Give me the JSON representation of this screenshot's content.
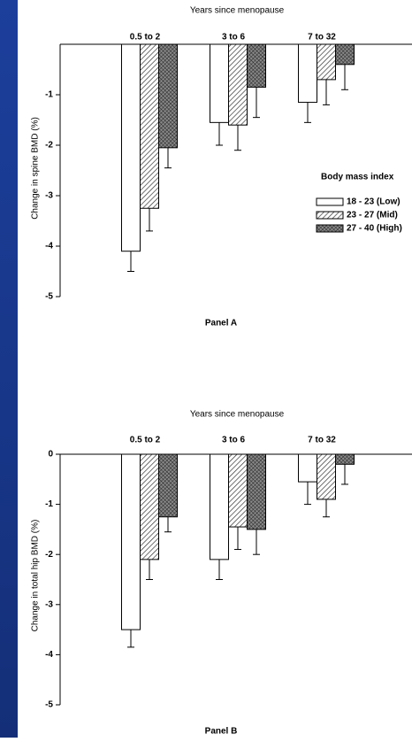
{
  "chart_data": [
    {
      "type": "bar",
      "title": "Years since menopause",
      "ylabel": "Change in spine BMD (%)",
      "xlabel": "Panel A",
      "categories": [
        "0.5 to 2",
        "3 to 6",
        "7 to 32"
      ],
      "ylim": [
        0,
        -5
      ],
      "yticks": [
        -1,
        -2,
        -3,
        -4,
        -5
      ],
      "legend": true,
      "legend_title": "Body mass index",
      "legend_position": "right",
      "series": [
        {
          "name": "18 - 23 (Low)",
          "color": "#ffffff",
          "hatch": "none",
          "values": [
            -4.1,
            -1.55,
            -1.15
          ],
          "errors": [
            0.4,
            0.45,
            0.4
          ]
        },
        {
          "name": "23 - 27 (Mid)",
          "color": "#ffffff",
          "hatch": "diagonal",
          "values": [
            -3.25,
            -1.6,
            -0.7
          ],
          "errors": [
            0.45,
            0.5,
            0.5
          ]
        },
        {
          "name": "27 - 40 (High)",
          "color": "#ffffff",
          "hatch": "cross",
          "values": [
            -2.05,
            -0.85,
            -0.4
          ],
          "errors": [
            0.4,
            0.6,
            0.5
          ]
        }
      ]
    },
    {
      "type": "bar",
      "title": "Years since menopause",
      "ylabel": "Change in total hip BMD (%)",
      "xlabel": "Panel B",
      "categories": [
        "0.5 to 2",
        "3 to 6",
        "7 to 32"
      ],
      "ylim": [
        0,
        -5
      ],
      "yticks": [
        0,
        -1,
        -2,
        -3,
        -4,
        -5
      ],
      "legend": false,
      "series": [
        {
          "color": "#ffffff",
          "hatch": "none",
          "values": [
            -3.5,
            -2.1,
            -0.55
          ],
          "errors": [
            0.35,
            0.4,
            0.45
          ]
        },
        {
          "color": "#ffffff",
          "hatch": "diagonal",
          "values": [
            -2.1,
            -1.45,
            -0.9
          ],
          "errors": [
            0.4,
            0.45,
            0.35
          ]
        },
        {
          "color": "#ffffff",
          "hatch": "cross",
          "values": [
            -1.25,
            -1.5,
            -0.2
          ],
          "errors": [
            0.3,
            0.5,
            0.4
          ]
        }
      ]
    }
  ]
}
